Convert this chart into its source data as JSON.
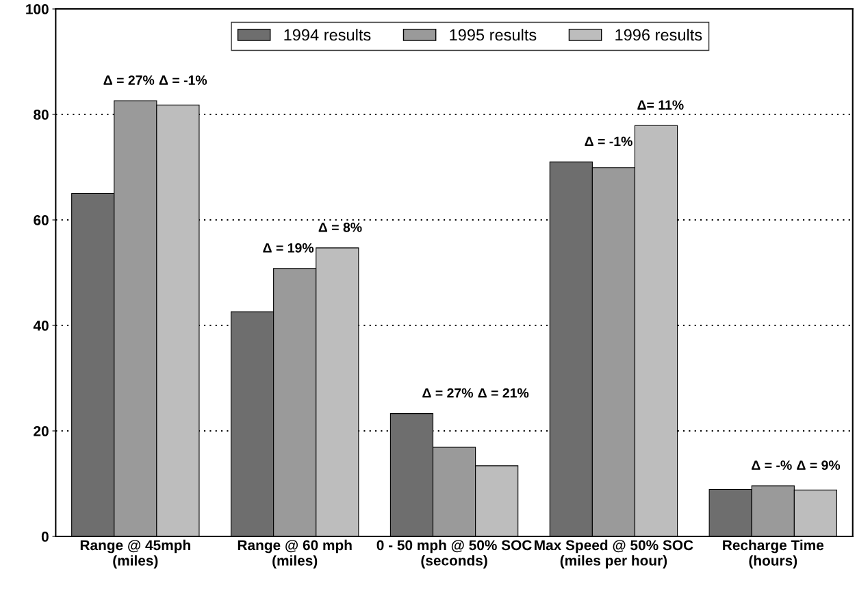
{
  "chart_data": {
    "type": "bar",
    "categories": [
      "Range @ 45mph\n(miles)",
      "Range @ 60 mph\n(miles)",
      "0 - 50 mph @ 50% SOC\n(seconds)",
      "Max Speed @ 50% SOC\n(miles per hour)",
      "Recharge Time\n(hours)"
    ],
    "series": [
      {
        "name": "1994 results",
        "color": "#6e6e6e",
        "values": [
          65,
          42.6,
          23.3,
          71,
          8.9
        ]
      },
      {
        "name": "1995 results",
        "color": "#9a9a9a",
        "values": [
          82.6,
          50.8,
          16.9,
          69.9,
          9.6
        ]
      },
      {
        "name": "1996 results",
        "color": "#bdbdbd",
        "values": [
          81.8,
          54.7,
          13.4,
          77.9,
          8.8
        ]
      }
    ],
    "ylim": [
      0,
      100
    ],
    "yticks": [
      0,
      20,
      40,
      60,
      80,
      100
    ],
    "grid": "y",
    "legend": "top",
    "annotations": [
      "Δ = 27%",
      "Δ = -1%",
      "Δ = 19%",
      "Δ = 8%",
      "Δ = 27%",
      "Δ = 21%",
      "Δ = -1%",
      "Δ= 11%",
      "Δ = -%",
      "Δ = 9%"
    ]
  }
}
